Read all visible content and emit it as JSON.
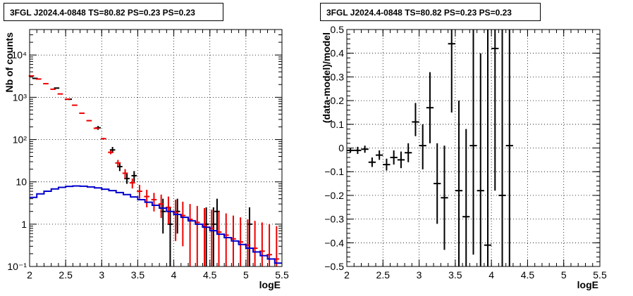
{
  "panels": {
    "left": {
      "title": "3FGL J2024.4-0848 TS=80.82 PS=0.23 PS=0.23"
    },
    "right": {
      "title": "3FGL J2024.4-0848 TS=80.82 PS=0.23 PS=0.23"
    }
  },
  "chart_data": [
    {
      "type": "scatter",
      "title": "3FGL J2024.4-0848 TS=80.82 PS=0.23 PS=0.23",
      "xlabel": "logE",
      "ylabel": "Nb of counts",
      "log_y": true,
      "grid": true,
      "xlim": [
        2,
        5.5
      ],
      "ylim": [
        0.1,
        40000
      ],
      "x_ticks": [
        2,
        2.5,
        3,
        3.5,
        4,
        4.5,
        5,
        5.5
      ],
      "x_tick_labels": [
        "2",
        "2.5",
        "3",
        "3.5",
        "4",
        "4.5",
        "5",
        "5.5"
      ],
      "y_ticks": [
        0.1,
        1,
        10,
        100,
        1000,
        10000
      ],
      "y_tick_labels": [
        "10⁻¹",
        "1",
        "10",
        "10²",
        "10³",
        "10⁴"
      ],
      "series": [
        {
          "color": "#000000",
          "style": "errorbars",
          "x_halfwidth": 0.0375,
          "points": [
            {
              "x": 2.075,
              "y": 2800,
              "lo": 2700,
              "hi": 2900
            },
            {
              "x": 2.375,
              "y": 1650,
              "lo": 1600,
              "hi": 1700
            },
            {
              "x": 2.55,
              "y": 900,
              "lo": 860,
              "hi": 940
            },
            {
              "x": 2.95,
              "y": 190,
              "lo": 170,
              "hi": 210
            },
            {
              "x": 3.15,
              "y": 57,
              "lo": 48,
              "hi": 67
            },
            {
              "x": 3.25,
              "y": 23,
              "lo": 18,
              "hi": 29
            },
            {
              "x": 3.35,
              "y": 12,
              "lo": 9,
              "hi": 16
            },
            {
              "x": 3.45,
              "y": 14,
              "lo": 10,
              "hi": 18
            },
            {
              "x": 3.85,
              "y": 2,
              "lo": 0.6,
              "hi": 4
            },
            {
              "x": 3.95,
              "y": 1,
              "lo": 0.1,
              "hi": 2.5
            },
            {
              "x": 4.05,
              "y": 2,
              "lo": 0.6,
              "hi": 4
            },
            {
              "x": 4.45,
              "y": 1,
              "lo": 0.1,
              "hi": 2.5
            },
            {
              "x": 4.55,
              "y": 1,
              "lo": 0.1,
              "hi": 2.5
            },
            {
              "x": 4.6,
              "y": 2,
              "lo": 0.6,
              "hi": 4
            },
            {
              "x": 5.05,
              "y": 1,
              "lo": 0.1,
              "hi": 2.5
            }
          ]
        },
        {
          "color": "#ee0000",
          "style": "errorbars",
          "x_halfwidth": 0.0375,
          "points": [
            {
              "x": 2.025,
              "y": 3200,
              "lo": 3150,
              "hi": 3250
            },
            {
              "x": 2.125,
              "y": 2700,
              "lo": 2650,
              "hi": 2750
            },
            {
              "x": 2.225,
              "y": 2100,
              "lo": 2060,
              "hi": 2140
            },
            {
              "x": 2.325,
              "y": 1550,
              "lo": 1520,
              "hi": 1580
            },
            {
              "x": 2.425,
              "y": 1200,
              "lo": 1170,
              "hi": 1230
            },
            {
              "x": 2.525,
              "y": 900,
              "lo": 880,
              "hi": 920
            },
            {
              "x": 2.625,
              "y": 650,
              "lo": 635,
              "hi": 665
            },
            {
              "x": 2.725,
              "y": 420,
              "lo": 408,
              "hi": 432
            },
            {
              "x": 2.825,
              "y": 280,
              "lo": 270,
              "hi": 290
            },
            {
              "x": 2.925,
              "y": 185,
              "lo": 177,
              "hi": 193
            },
            {
              "x": 3.025,
              "y": 105,
              "lo": 100,
              "hi": 110
            },
            {
              "x": 3.125,
              "y": 50,
              "lo": 45,
              "hi": 55
            },
            {
              "x": 3.225,
              "y": 28,
              "lo": 23,
              "hi": 33
            },
            {
              "x": 3.325,
              "y": 16,
              "lo": 12,
              "hi": 20
            },
            {
              "x": 3.425,
              "y": 9.5,
              "lo": 7,
              "hi": 12
            },
            {
              "x": 3.525,
              "y": 6,
              "lo": 4,
              "hi": 8.5
            },
            {
              "x": 3.625,
              "y": 4.5,
              "lo": 2.5,
              "hi": 6.5
            },
            {
              "x": 3.725,
              "y": 3.8,
              "lo": 2,
              "hi": 5.5
            },
            {
              "x": 3.825,
              "y": 3,
              "lo": 1.4,
              "hi": 5
            },
            {
              "x": 3.925,
              "y": 2.5,
              "lo": 1,
              "hi": 4.5
            },
            {
              "x": 4.025,
              "y": 1.9,
              "lo": 0.4,
              "hi": 3.8
            },
            {
              "x": 4.125,
              "y": 1.6,
              "lo": 0.3,
              "hi": 3.4
            },
            {
              "x": 4.225,
              "y": 1.3,
              "lo": 0.1,
              "hi": 3
            },
            {
              "x": 4.325,
              "y": 1.1,
              "lo": 0.1,
              "hi": 2.7
            },
            {
              "x": 4.425,
              "y": 0.9,
              "lo": 0.1,
              "hi": 2.4
            },
            {
              "x": 4.525,
              "y": 0.8,
              "lo": 0.1,
              "hi": 2.2
            },
            {
              "x": 4.625,
              "y": 0.65,
              "lo": 0.1,
              "hi": 2.0
            },
            {
              "x": 4.725,
              "y": 0.55,
              "lo": 0.1,
              "hi": 1.8
            },
            {
              "x": 4.825,
              "y": 0.45,
              "lo": 0.1,
              "hi": 1.6
            },
            {
              "x": 4.925,
              "y": 0.38,
              "lo": 0.1,
              "hi": 1.45
            },
            {
              "x": 5.025,
              "y": 0.32,
              "lo": 0.1,
              "hi": 1.3
            },
            {
              "x": 5.125,
              "y": 0.27,
              "lo": 0.1,
              "hi": 1.2
            },
            {
              "x": 5.225,
              "y": 0.23,
              "lo": 0.1,
              "hi": 1.1
            },
            {
              "x": 5.325,
              "y": 0.19,
              "lo": 0.1,
              "hi": 1.0
            },
            {
              "x": 5.425,
              "y": 0.15,
              "lo": 0.1,
              "hi": 0.9
            }
          ]
        },
        {
          "color": "#0000cc",
          "style": "step",
          "bin_width": 0.1,
          "x_start": 2.0,
          "values": [
            4.3,
            5.2,
            6.0,
            6.8,
            7.4,
            7.8,
            8.0,
            7.9,
            7.6,
            7.2,
            6.7,
            6.2,
            5.6,
            5.0,
            4.4,
            3.8,
            3.3,
            2.8,
            2.4,
            2.0,
            1.7,
            1.45,
            1.2,
            1.0,
            0.85,
            0.7,
            0.58,
            0.48,
            0.4,
            0.33,
            0.27,
            0.22,
            0.18,
            0.15,
            0.12
          ]
        }
      ]
    },
    {
      "type": "scatter",
      "title": "3FGL J2024.4-0848 TS=80.82 PS=0.23 PS=0.23",
      "xlabel": "logE",
      "ylabel": "(data-model)/model",
      "grid": true,
      "xlim": [
        2,
        5.5
      ],
      "ylim": [
        -0.5,
        0.5
      ],
      "x_ticks": [
        2,
        2.5,
        3,
        3.5,
        4,
        4.5,
        5,
        5.5
      ],
      "x_tick_labels": [
        "2",
        "2.5",
        "3",
        "3.5",
        "4",
        "4.5",
        "5",
        "5.5"
      ],
      "y_ticks": [
        -0.5,
        -0.4,
        -0.3,
        -0.2,
        -0.1,
        0,
        0.1,
        0.2,
        0.3,
        0.4,
        0.5
      ],
      "y_tick_labels": [
        "−0.5",
        "−0.4",
        "−0.3",
        "−0.2",
        "−0.1",
        "0",
        "0.1",
        "0.2",
        "0.3",
        "0.4",
        "0.5"
      ],
      "series": [
        {
          "color": "#000000",
          "style": "errorbars",
          "x_halfwidth": 0.05,
          "points": [
            {
              "x": 2.05,
              "y": -0.01,
              "lo": -0.02,
              "hi": 0.0
            },
            {
              "x": 2.15,
              "y": -0.01,
              "lo": -0.025,
              "hi": 0.005
            },
            {
              "x": 2.25,
              "y": -0.005,
              "lo": -0.02,
              "hi": 0.01
            },
            {
              "x": 2.35,
              "y": -0.06,
              "lo": -0.08,
              "hi": -0.04
            },
            {
              "x": 2.45,
              "y": -0.03,
              "lo": -0.05,
              "hi": -0.01
            },
            {
              "x": 2.55,
              "y": -0.07,
              "lo": -0.095,
              "hi": -0.045
            },
            {
              "x": 2.65,
              "y": -0.04,
              "lo": -0.07,
              "hi": -0.01
            },
            {
              "x": 2.75,
              "y": -0.05,
              "lo": -0.085,
              "hi": -0.015
            },
            {
              "x": 2.85,
              "y": -0.02,
              "lo": -0.06,
              "hi": 0.02
            },
            {
              "x": 2.95,
              "y": 0.11,
              "lo": 0.05,
              "hi": 0.19
            },
            {
              "x": 3.05,
              "y": 0.01,
              "lo": -0.09,
              "hi": 0.1
            },
            {
              "x": 3.15,
              "y": 0.17,
              "lo": 0.02,
              "hi": 0.32
            },
            {
              "x": 3.25,
              "y": -0.15,
              "lo": -0.32,
              "hi": 0.02
            },
            {
              "x": 3.35,
              "y": -0.21,
              "lo": -0.43,
              "hi": 0.01
            },
            {
              "x": 3.45,
              "y": 0.44,
              "lo": 0.15,
              "hi": 0.5
            },
            {
              "x": 3.55,
              "y": -0.18,
              "lo": -0.5,
              "hi": 0.2
            },
            {
              "x": 3.65,
              "y": -0.29,
              "lo": -0.5,
              "hi": 0.08
            },
            {
              "x": 3.75,
              "y": 0.01,
              "lo": -0.45,
              "hi": 0.5
            },
            {
              "x": 3.85,
              "y": -0.18,
              "lo": -0.5,
              "hi": 0.4
            },
            {
              "x": 3.95,
              "y": -0.41,
              "lo": -0.5,
              "hi": 0.5
            },
            {
              "x": 4.05,
              "y": 0.42,
              "lo": -0.18,
              "hi": 0.5
            },
            {
              "x": 4.15,
              "y": -0.2,
              "lo": -0.5,
              "hi": 0.5
            },
            {
              "x": 4.25,
              "y": 0.01,
              "lo": -0.5,
              "hi": 0.5
            }
          ]
        }
      ]
    }
  ]
}
